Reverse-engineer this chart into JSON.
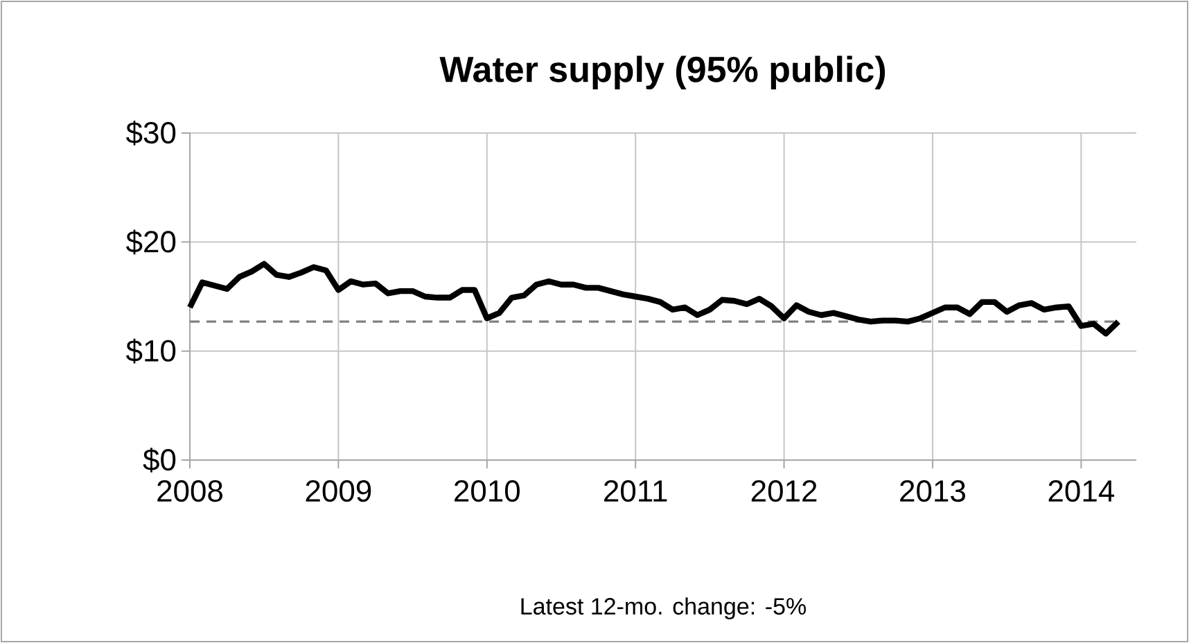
{
  "chart_data": {
    "type": "line",
    "title": "Water supply (95% public)",
    "annotations": [
      "Latest 12-mo. change: -5%"
    ],
    "x": [
      "2008-01",
      "2008-02",
      "2008-03",
      "2008-04",
      "2008-05",
      "2008-06",
      "2008-07",
      "2008-08",
      "2008-09",
      "2008-10",
      "2008-11",
      "2008-12",
      "2009-01",
      "2009-02",
      "2009-03",
      "2009-04",
      "2009-05",
      "2009-06",
      "2009-07",
      "2009-08",
      "2009-09",
      "2009-10",
      "2009-11",
      "2009-12",
      "2010-01",
      "2010-02",
      "2010-03",
      "2010-04",
      "2010-05",
      "2010-06",
      "2010-07",
      "2010-08",
      "2010-09",
      "2010-10",
      "2010-11",
      "2010-12",
      "2011-01",
      "2011-02",
      "2011-03",
      "2011-04",
      "2011-05",
      "2011-06",
      "2011-07",
      "2011-08",
      "2011-09",
      "2011-10",
      "2011-11",
      "2011-12",
      "2012-01",
      "2012-02",
      "2012-03",
      "2012-04",
      "2012-05",
      "2012-06",
      "2012-07",
      "2012-08",
      "2012-09",
      "2012-10",
      "2012-11",
      "2012-12",
      "2013-01",
      "2013-02",
      "2013-03",
      "2013-04",
      "2013-05",
      "2013-06",
      "2013-07",
      "2013-08",
      "2013-09",
      "2013-10",
      "2013-11",
      "2013-12",
      "2014-01",
      "2014-02",
      "2014-03",
      "2014-04"
    ],
    "series": [
      {
        "color": "#000000",
        "values": [
          14,
          16.3,
          16,
          15.7,
          16.8,
          17.3,
          18,
          17,
          16.8,
          17.2,
          17.7,
          17.4,
          15.6,
          16.4,
          16.1,
          16.2,
          15.3,
          15.5,
          15.5,
          15,
          14.9,
          14.9,
          15.6,
          15.6,
          13,
          13.5,
          14.9,
          15.1,
          16.1,
          16.4,
          16.1,
          16.1,
          15.8,
          15.8,
          15.5,
          15.2,
          15,
          14.8,
          14.5,
          13.8,
          14,
          13.3,
          13.8,
          14.7,
          14.6,
          14.3,
          14.8,
          14.1,
          13,
          14.2,
          13.6,
          13.3,
          13.5,
          13.2,
          12.9,
          12.7,
          12.8,
          12.8,
          12.7,
          13,
          13.5,
          14,
          14,
          13.4,
          14.5,
          14.5,
          13.6,
          14.2,
          14.4,
          13.8,
          14,
          14.1,
          12.3,
          12.5,
          11.6,
          12.7
        ]
      }
    ],
    "xlim": [
      "2008-01-01",
      "2014-05-15"
    ],
    "xticks": [
      "2008",
      "2009",
      "2010",
      "2011",
      "2012",
      "2013",
      "2014"
    ],
    "ylim": [
      0,
      30
    ],
    "yticks": [
      {
        "value": 0,
        "label": "$0"
      },
      {
        "value": 10,
        "label": "$10"
      },
      {
        "value": 20,
        "label": "$20"
      },
      {
        "value": 30,
        "label": "$30"
      }
    ],
    "grid": true,
    "line_style": "solid",
    "ref_lines": [
      {
        "axis": "y",
        "value": 12.7,
        "color": "#808080",
        "line_style": "dashed"
      }
    ]
  }
}
